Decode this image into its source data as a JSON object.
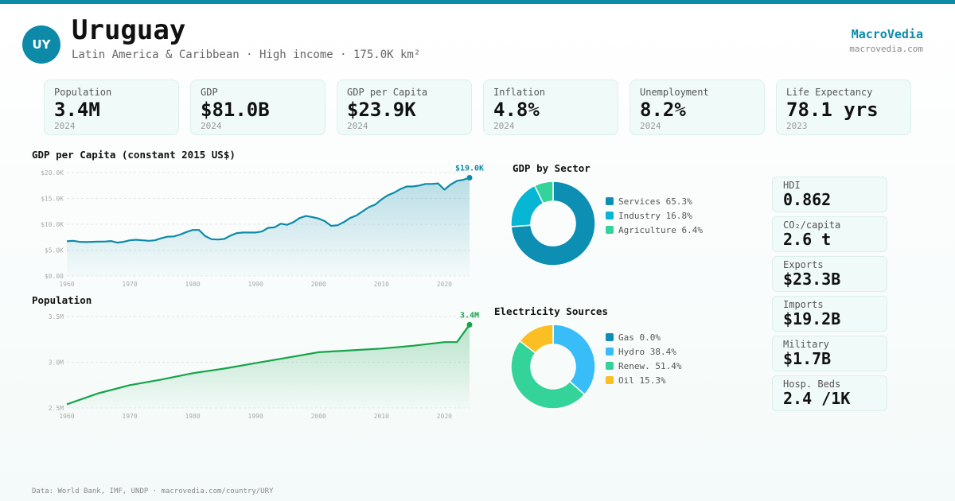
{
  "header": {
    "code": "UY",
    "country": "Uruguay",
    "subtitle": "Latin America & Caribbean · High income · 175.0K km²",
    "brand": "MacroVedia",
    "brand_url": "macrovedia.com"
  },
  "stats": [
    {
      "label": "Population",
      "value": "3.4M",
      "year": "2024"
    },
    {
      "label": "GDP",
      "value": "$81.0B",
      "year": "2024"
    },
    {
      "label": "GDP per Capita",
      "value": "$23.9K",
      "year": "2024"
    },
    {
      "label": "Inflation",
      "value": "4.8%",
      "year": "2024"
    },
    {
      "label": "Unemployment",
      "value": "8.2%",
      "year": "2024"
    },
    {
      "label": "Life Expectancy",
      "value": "78.1 yrs",
      "year": "2023"
    }
  ],
  "side_stats": [
    {
      "label": "HDI",
      "value": "0.862"
    },
    {
      "label": "CO₂/capita",
      "value": "2.6 t"
    },
    {
      "label": "Exports",
      "value": "$23.3B"
    },
    {
      "label": "Imports",
      "value": "$19.2B"
    },
    {
      "label": "Military",
      "value": "$1.7B"
    },
    {
      "label": "Hosp. Beds",
      "value": "2.4 /1K"
    }
  ],
  "footer": "Data: World Bank, IMF, UNDP · macrovedia.com/country/URY",
  "colors": {
    "accent": "#0d8aa8",
    "pop_line": "#16a34a"
  },
  "chart_data": [
    {
      "type": "area",
      "title": "GDP per Capita (constant 2015 US$)",
      "end_label": "$19.0K",
      "color": "#0d8aa8",
      "ylim": [
        0,
        20000
      ],
      "yticks": [
        0,
        5000,
        10000,
        15000,
        20000
      ],
      "ytick_labels": [
        "$0.00",
        "$5.0K",
        "$10.0K",
        "$15.0K",
        "$20.0K"
      ],
      "xlim": [
        1960,
        2024
      ],
      "xticks": [
        1960,
        1970,
        1980,
        1990,
        2000,
        2010,
        2020
      ],
      "x": [
        1960,
        1961,
        1962,
        1963,
        1964,
        1965,
        1966,
        1967,
        1968,
        1969,
        1970,
        1971,
        1972,
        1973,
        1974,
        1975,
        1976,
        1977,
        1978,
        1979,
        1980,
        1981,
        1982,
        1983,
        1984,
        1985,
        1986,
        1987,
        1988,
        1989,
        1990,
        1991,
        1992,
        1993,
        1994,
        1995,
        1996,
        1997,
        1998,
        1999,
        2000,
        2001,
        2002,
        2003,
        2004,
        2005,
        2006,
        2007,
        2008,
        2009,
        2010,
        2011,
        2012,
        2013,
        2014,
        2015,
        2016,
        2017,
        2018,
        2019,
        2020,
        2021,
        2022,
        2023,
        2024
      ],
      "y": [
        6700,
        6800,
        6600,
        6550,
        6600,
        6650,
        6650,
        6750,
        6450,
        6600,
        6900,
        7000,
        6900,
        6800,
        6900,
        7300,
        7600,
        7650,
        8000,
        8500,
        8900,
        8900,
        7700,
        7100,
        7050,
        7150,
        7800,
        8300,
        8400,
        8400,
        8400,
        8600,
        9300,
        9400,
        10100,
        9900,
        10400,
        11200,
        11600,
        11400,
        11100,
        10600,
        9700,
        9800,
        10400,
        11200,
        11700,
        12500,
        13300,
        13800,
        14800,
        15600,
        16100,
        16800,
        17300,
        17300,
        17500,
        17800,
        17800,
        17900,
        16700,
        17700,
        18400,
        18600,
        19000
      ],
      "grid": true
    },
    {
      "type": "area",
      "title": "Population",
      "end_label": "3.4M",
      "color": "#16a34a",
      "ylim": [
        2.5,
        3.5
      ],
      "yticks": [
        2.5,
        3.0,
        3.5
      ],
      "ytick_labels": [
        "2.5M",
        "3.0M",
        "3.5M"
      ],
      "xlim": [
        1960,
        2024
      ],
      "xticks": [
        1960,
        1970,
        1980,
        1990,
        2000,
        2010,
        2020
      ],
      "x": [
        1960,
        1965,
        1970,
        1975,
        1980,
        1985,
        1990,
        1995,
        2000,
        2005,
        2010,
        2015,
        2020,
        2022,
        2024
      ],
      "y": [
        2.54,
        2.66,
        2.75,
        2.81,
        2.88,
        2.93,
        2.99,
        3.05,
        3.11,
        3.13,
        3.15,
        3.18,
        3.22,
        3.22,
        3.41
      ],
      "grid": true
    },
    {
      "type": "pie",
      "title": "GDP by Sector",
      "labels": [
        "Services",
        "Industry",
        "Agriculture"
      ],
      "values": [
        65.3,
        16.8,
        6.4
      ],
      "colors": [
        "#0d8fb3",
        "#06b6d4",
        "#34d399"
      ],
      "legend": [
        "Services 65.3%",
        "Industry 16.8%",
        "Agriculture 6.4%"
      ]
    },
    {
      "type": "pie",
      "title": "Electricity Sources",
      "labels": [
        "Gas",
        "Hydro",
        "Renew.",
        "Oil"
      ],
      "values": [
        0.0,
        38.4,
        51.4,
        15.3
      ],
      "colors": [
        "#0d8fb3",
        "#38bdf8",
        "#34d399",
        "#fbbf24"
      ],
      "legend": [
        "Gas 0.0%",
        "Hydro 38.4%",
        "Renew. 51.4%",
        "Oil 15.3%"
      ]
    }
  ]
}
